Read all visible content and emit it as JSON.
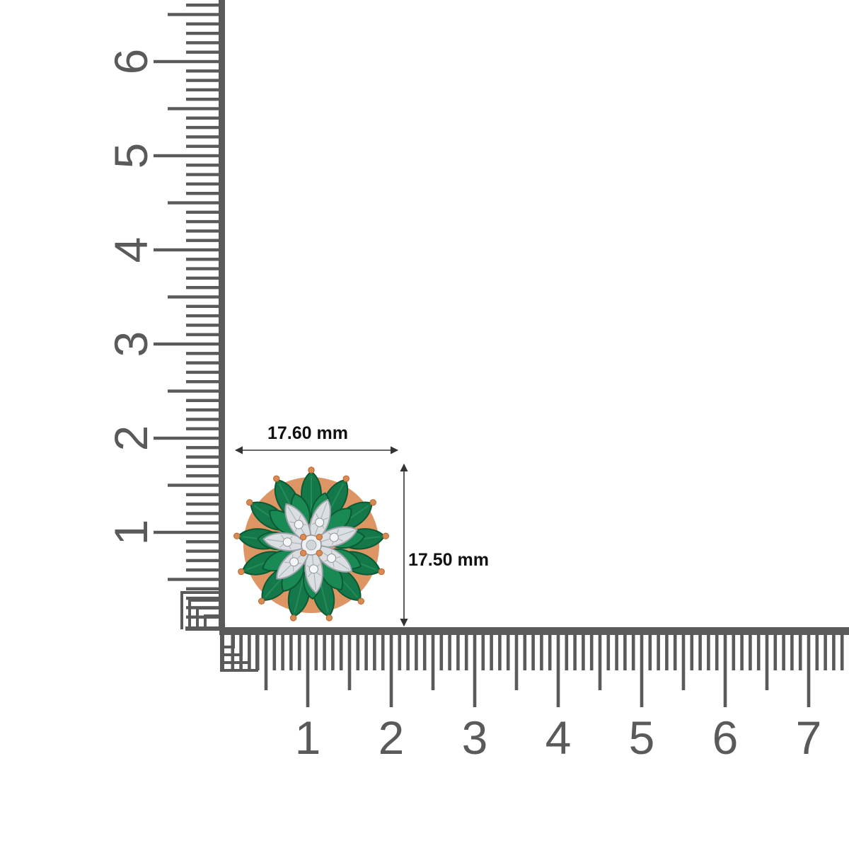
{
  "dimensions": {
    "width_label": "17.60 mm",
    "height_label": "17.50 mm"
  },
  "vertical_ruler": {
    "numbers": [
      "1",
      "2",
      "3",
      "4",
      "5",
      "6"
    ]
  },
  "horizontal_ruler": {
    "numbers": [
      "1",
      "2",
      "3",
      "4",
      "5",
      "6",
      "7"
    ]
  },
  "colors": {
    "ruler": "#5a5a5a",
    "emerald": "#14784a",
    "emerald_dark": "#0b5a34",
    "gold": "#d98a52",
    "silver": "#dcdfe2",
    "background": "#ffffff"
  },
  "product": {
    "icon": "emerald-flower-stud-earring"
  }
}
